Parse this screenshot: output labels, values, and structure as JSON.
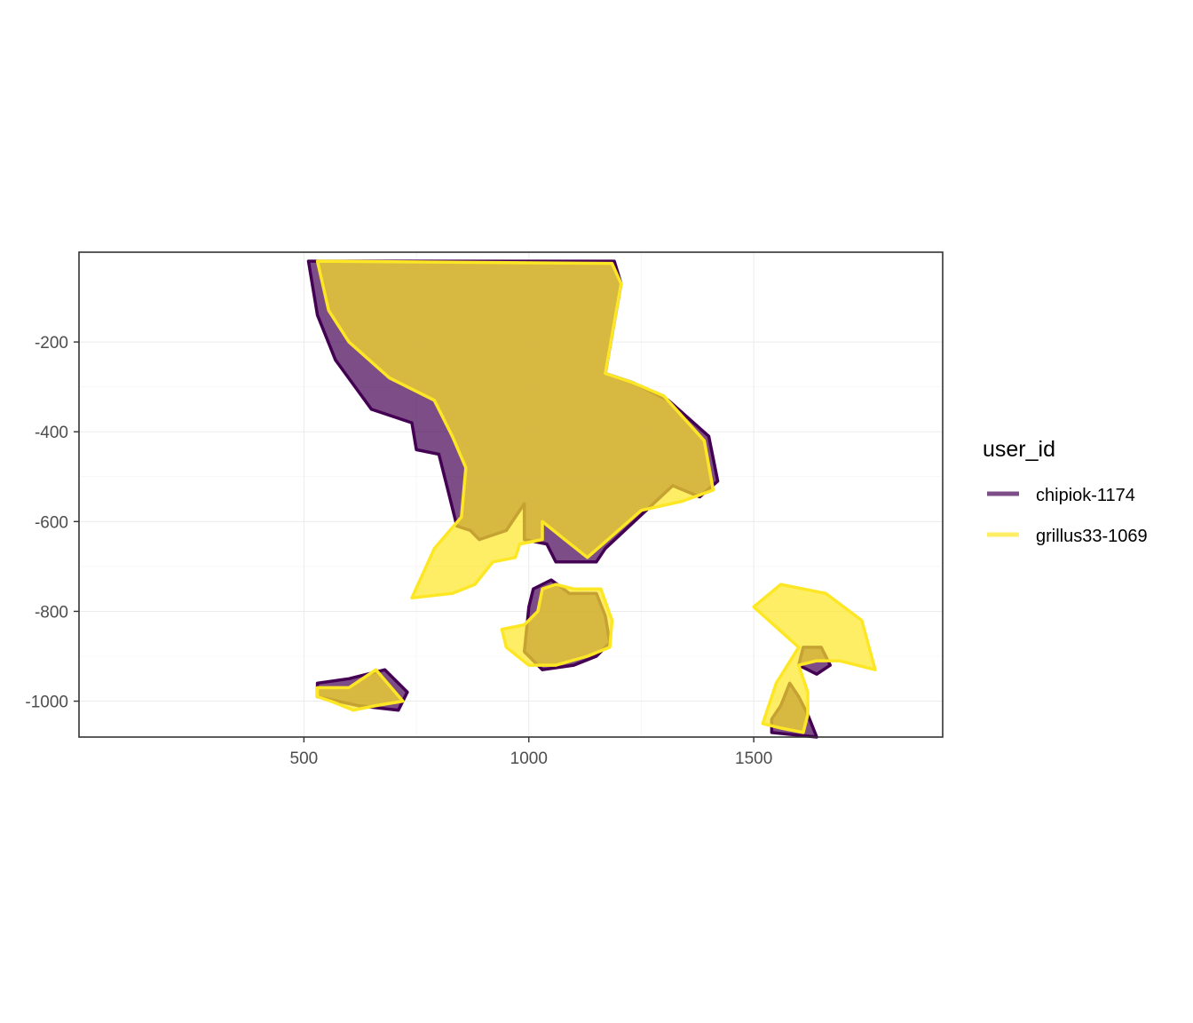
{
  "chart_data": {
    "type": "area",
    "title": "",
    "xlabel": "",
    "ylabel": "",
    "xlim": [
      0,
      1920
    ],
    "ylim": [
      -1080,
      0
    ],
    "grid": true,
    "x_ticks": [
      {
        "value": 500,
        "label": "500"
      },
      {
        "value": 1000,
        "label": "1000"
      },
      {
        "value": 1500,
        "label": "1500"
      }
    ],
    "y_ticks": [
      {
        "value": -200,
        "label": "-200"
      },
      {
        "value": -400,
        "label": "-400"
      },
      {
        "value": -600,
        "label": "-600"
      },
      {
        "value": -800,
        "label": "-800"
      },
      {
        "value": -1000,
        "label": "-1000"
      }
    ],
    "legend": {
      "title": "user_id",
      "placement": "right",
      "entries": [
        {
          "label": "chipiok-1174",
          "color": "#440154"
        },
        {
          "label": "grillus33-1069",
          "color": "#FDE725"
        }
      ]
    },
    "series": [
      {
        "name": "chipiok-1174",
        "color": "#440154",
        "polygons": [
          [
            [
              510,
              -20
            ],
            [
              1190,
              -20
            ],
            [
              1205,
              -70
            ],
            [
              1170,
              -270
            ],
            [
              1230,
              -290
            ],
            [
              1310,
              -330
            ],
            [
              1400,
              -410
            ],
            [
              1420,
              -510
            ],
            [
              1380,
              -545
            ],
            [
              1320,
              -520
            ],
            [
              1170,
              -660
            ],
            [
              1150,
              -690
            ],
            [
              1060,
              -690
            ],
            [
              1040,
              -650
            ],
            [
              990,
              -640
            ],
            [
              990,
              -560
            ],
            [
              950,
              -620
            ],
            [
              890,
              -640
            ],
            [
              870,
              -620
            ],
            [
              840,
              -610
            ],
            [
              820,
              -530
            ],
            [
              810,
              -490
            ],
            [
              800,
              -450
            ],
            [
              750,
              -440
            ],
            [
              740,
              -380
            ],
            [
              650,
              -350
            ],
            [
              570,
              -240
            ],
            [
              530,
              -140
            ]
          ],
          [
            [
              1010,
              -750
            ],
            [
              1050,
              -730
            ],
            [
              1090,
              -760
            ],
            [
              1150,
              -760
            ],
            [
              1170,
              -810
            ],
            [
              1180,
              -870
            ],
            [
              1150,
              -900
            ],
            [
              1100,
              -920
            ],
            [
              1030,
              -930
            ],
            [
              990,
              -890
            ],
            [
              1000,
              -790
            ]
          ],
          [
            [
              530,
              -960
            ],
            [
              600,
              -950
            ],
            [
              680,
              -930
            ],
            [
              730,
              -980
            ],
            [
              710,
              -1020
            ],
            [
              620,
              -1010
            ],
            [
              530,
              -990
            ]
          ],
          [
            [
              1540,
              -1070
            ],
            [
              1640,
              -1080
            ],
            [
              1620,
              -1030
            ],
            [
              1600,
              -990
            ],
            [
              1580,
              -960
            ],
            [
              1560,
              -1010
            ],
            [
              1540,
              -1040
            ]
          ],
          [
            [
              1610,
              -880
            ],
            [
              1650,
              -880
            ],
            [
              1670,
              -920
            ],
            [
              1640,
              -940
            ],
            [
              1600,
              -920
            ]
          ]
        ]
      },
      {
        "name": "grillus33-1069",
        "color": "#FDE725",
        "polygons": [
          [
            [
              530,
              -20
            ],
            [
              1185,
              -25
            ],
            [
              1205,
              -70
            ],
            [
              1170,
              -270
            ],
            [
              1230,
              -290
            ],
            [
              1300,
              -320
            ],
            [
              1390,
              -420
            ],
            [
              1410,
              -530
            ],
            [
              1340,
              -555
            ],
            [
              1250,
              -575
            ],
            [
              1130,
              -680
            ],
            [
              1080,
              -640
            ],
            [
              1030,
              -600
            ],
            [
              1030,
              -640
            ],
            [
              980,
              -650
            ],
            [
              970,
              -680
            ],
            [
              920,
              -690
            ],
            [
              880,
              -740
            ],
            [
              830,
              -760
            ],
            [
              740,
              -770
            ],
            [
              790,
              -660
            ],
            [
              850,
              -590
            ],
            [
              860,
              -480
            ],
            [
              830,
              -410
            ],
            [
              790,
              -330
            ],
            [
              690,
              -280
            ],
            [
              600,
              -200
            ],
            [
              555,
              -130
            ]
          ],
          [
            [
              1030,
              -750
            ],
            [
              1060,
              -740
            ],
            [
              1100,
              -750
            ],
            [
              1160,
              -750
            ],
            [
              1185,
              -820
            ],
            [
              1180,
              -880
            ],
            [
              1130,
              -900
            ],
            [
              1060,
              -920
            ],
            [
              1000,
              -920
            ],
            [
              950,
              -880
            ],
            [
              940,
              -840
            ],
            [
              990,
              -830
            ],
            [
              1020,
              -800
            ]
          ],
          [
            [
              530,
              -970
            ],
            [
              600,
              -970
            ],
            [
              660,
              -930
            ],
            [
              720,
              -1000
            ],
            [
              660,
              -1010
            ],
            [
              610,
              -1020
            ],
            [
              560,
              -1000
            ],
            [
              530,
              -990
            ]
          ],
          [
            [
              1500,
              -790
            ],
            [
              1560,
              -740
            ],
            [
              1660,
              -760
            ],
            [
              1740,
              -820
            ],
            [
              1770,
              -930
            ],
            [
              1690,
              -910
            ],
            [
              1640,
              -910
            ],
            [
              1600,
              -920
            ],
            [
              1620,
              -980
            ],
            [
              1620,
              -1030
            ],
            [
              1610,
              -1070
            ],
            [
              1560,
              -1060
            ],
            [
              1520,
              -1050
            ],
            [
              1550,
              -960
            ],
            [
              1600,
              -880
            ]
          ]
        ]
      }
    ]
  }
}
